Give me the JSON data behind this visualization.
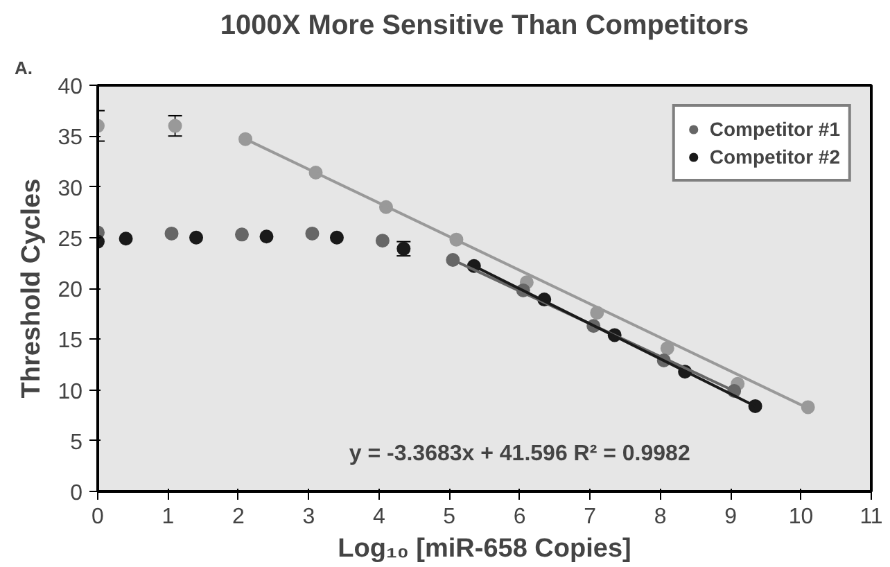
{
  "chart_data": {
    "type": "scatter",
    "title": "1000X More Sensitive Than Competitors",
    "xlabel": "Log₁₀ [miR-658 Copies]",
    "ylabel": "Threshold Cycles",
    "annotations": [
      "A.",
      "y = -3.3683x + 41.596 R² = 0.9982"
    ],
    "xlim": [
      0,
      11
    ],
    "xticks": [
      0,
      1,
      2,
      3,
      4,
      5,
      6,
      7,
      8,
      9,
      10,
      11
    ],
    "ylim": [
      0,
      40
    ],
    "yticks": [
      0,
      5,
      10,
      15,
      20,
      25,
      30,
      35,
      40
    ],
    "grid": false,
    "legend": "top right",
    "marker": "circle",
    "series": [
      {
        "color": "#999999",
        "x": [
          0,
          1.1,
          2.1,
          3.1,
          4.1,
          5.1,
          6.1,
          7.1,
          8.1,
          9.1,
          10.1
        ],
        "values": [
          36,
          36,
          34.7,
          31.4,
          28,
          24.8,
          20.6,
          17.6,
          14.1,
          10.6,
          8.3
        ],
        "errors": [
          1.5,
          1,
          null,
          null,
          null,
          null,
          null,
          null,
          null,
          null,
          null
        ]
      },
      {
        "name": "Competitor #1",
        "color": "#666666",
        "x": [
          0,
          1.05,
          2.05,
          3.05,
          4.05,
          5.05,
          6.05,
          7.05,
          8.05,
          9.05
        ],
        "values": [
          25.5,
          25.4,
          25.3,
          25.4,
          24.7,
          22.8,
          19.8,
          16.3,
          12.9,
          9.9
        ]
      },
      {
        "name": "Competitor #2",
        "color": "#1a1a1a",
        "x": [
          0,
          0.4,
          1.4,
          2.4,
          3.4,
          4.35,
          5.35,
          6.35,
          7.35,
          8.35,
          9.35
        ],
        "values": [
          24.6,
          24.9,
          25.0,
          25.1,
          25.0,
          23.9,
          22.2,
          18.9,
          15.4,
          11.8,
          8.4
        ],
        "errors": [
          null,
          null,
          null,
          null,
          null,
          0.7,
          null,
          null,
          null,
          null,
          null
        ]
      },
      {
        "type": "line",
        "marker": "none",
        "color": "#999999",
        "x": [
          2.1,
          10.1
        ],
        "values": [
          34.7,
          8.2
        ]
      },
      {
        "type": "line",
        "marker": "none",
        "color": "#666666",
        "x": [
          5.05,
          9.05
        ],
        "values": [
          22.8,
          9.9
        ]
      },
      {
        "type": "line",
        "marker": "none",
        "color": "#1a1a1a",
        "x": [
          5.35,
          9.35
        ],
        "values": [
          22.2,
          8.4
        ]
      }
    ]
  }
}
